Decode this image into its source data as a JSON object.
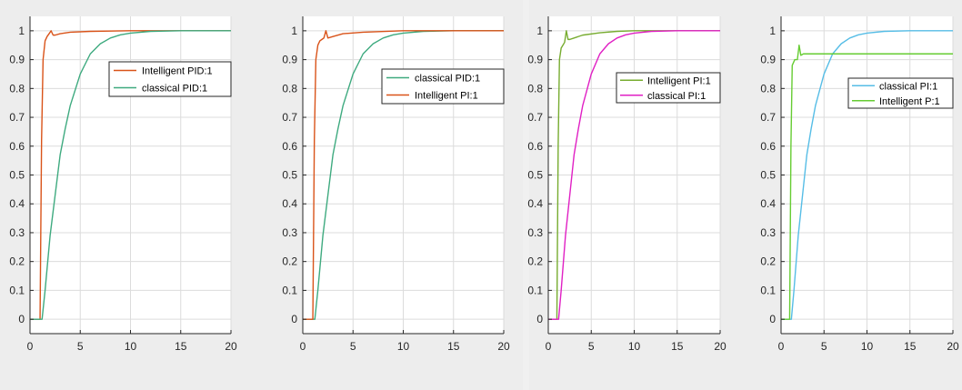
{
  "chart_data": [
    {
      "type": "line",
      "xlim": [
        0,
        20
      ],
      "ylim": [
        -0.05,
        1.05
      ],
      "xticks": [
        0,
        5,
        10,
        15,
        20
      ],
      "yticks": [
        0,
        0.1,
        0.2,
        0.3,
        0.4,
        0.5,
        0.6,
        0.7,
        0.8,
        0.9,
        1
      ],
      "grid": true,
      "legend_position": "upper-right",
      "series": [
        {
          "name": "Intelligent PID:1",
          "color": "#d95319",
          "x": [
            0,
            1,
            1.15,
            1.3,
            1.5,
            1.7,
            1.9,
            2.1,
            2.3,
            2.5,
            3,
            4,
            6,
            10,
            20
          ],
          "y": [
            0,
            0,
            0.62,
            0.9,
            0.965,
            0.98,
            0.99,
            1.0,
            0.985,
            0.985,
            0.99,
            0.995,
            0.998,
            1.0,
            1.0
          ]
        },
        {
          "name": "classical  PID:1",
          "color": "#3eaa7f",
          "x": [
            0,
            1.2,
            1.5,
            2,
            2.5,
            3,
            3.5,
            4,
            5,
            6,
            7,
            8,
            9,
            10,
            12,
            15,
            20
          ],
          "y": [
            0,
            0,
            0.1,
            0.29,
            0.43,
            0.57,
            0.66,
            0.74,
            0.85,
            0.92,
            0.955,
            0.975,
            0.986,
            0.992,
            0.998,
            1.0,
            1.0
          ]
        }
      ]
    },
    {
      "type": "line",
      "xlim": [
        0,
        20
      ],
      "ylim": [
        -0.05,
        1.05
      ],
      "xticks": [
        0,
        5,
        10,
        15,
        20
      ],
      "yticks": [
        0,
        0.1,
        0.2,
        0.3,
        0.4,
        0.5,
        0.6,
        0.7,
        0.8,
        0.9,
        1
      ],
      "grid": true,
      "legend_position": "upper-right",
      "series": [
        {
          "name": "classical  PID:1",
          "color": "#3eaa7f",
          "x": [
            0,
            1.2,
            1.5,
            2,
            2.5,
            3,
            3.5,
            4,
            5,
            6,
            7,
            8,
            9,
            10,
            12,
            15,
            20
          ],
          "y": [
            0,
            0,
            0.1,
            0.29,
            0.43,
            0.57,
            0.66,
            0.74,
            0.85,
            0.92,
            0.955,
            0.975,
            0.986,
            0.992,
            0.998,
            1.0,
            1.0
          ]
        },
        {
          "name": "Intelligent PI:1",
          "color": "#d95319",
          "x": [
            0,
            1,
            1.15,
            1.3,
            1.5,
            1.7,
            1.9,
            2.1,
            2.3,
            2.5,
            3,
            4,
            6,
            10,
            20
          ],
          "y": [
            0,
            0,
            0.62,
            0.9,
            0.95,
            0.965,
            0.97,
            0.975,
            1.0,
            0.975,
            0.98,
            0.99,
            0.995,
            1.0,
            1.0
          ]
        }
      ]
    },
    {
      "type": "line",
      "xlim": [
        0,
        20
      ],
      "ylim": [
        -0.05,
        1.05
      ],
      "xticks": [
        0,
        5,
        10,
        15,
        20
      ],
      "yticks": [
        0,
        0.1,
        0.2,
        0.3,
        0.4,
        0.5,
        0.6,
        0.7,
        0.8,
        0.9,
        1
      ],
      "grid": true,
      "legend_position": "upper-right",
      "series": [
        {
          "name": "Intelligent PI:1",
          "color": "#77ac30",
          "x": [
            0,
            1,
            1.15,
            1.3,
            1.5,
            1.7,
            1.9,
            2.1,
            2.3,
            2.5,
            3,
            4,
            6,
            8,
            10,
            20
          ],
          "y": [
            0,
            0,
            0.6,
            0.9,
            0.94,
            0.95,
            0.96,
            1.0,
            0.97,
            0.97,
            0.975,
            0.985,
            0.993,
            0.998,
            1.0,
            1.0
          ]
        },
        {
          "name": "classical  PI:1",
          "color": "#e020c4",
          "x": [
            0,
            1.2,
            1.5,
            2,
            2.5,
            3,
            3.5,
            4,
            5,
            6,
            7,
            8,
            9,
            10,
            12,
            15,
            20
          ],
          "y": [
            0,
            0,
            0.1,
            0.29,
            0.43,
            0.57,
            0.66,
            0.74,
            0.85,
            0.92,
            0.955,
            0.975,
            0.986,
            0.992,
            0.998,
            1.0,
            1.0
          ]
        }
      ]
    },
    {
      "type": "line",
      "xlim": [
        0,
        20
      ],
      "ylim": [
        -0.05,
        1.05
      ],
      "xticks": [
        0,
        5,
        10,
        15,
        20
      ],
      "yticks": [
        0,
        0.1,
        0.2,
        0.3,
        0.4,
        0.5,
        0.6,
        0.7,
        0.8,
        0.9,
        1
      ],
      "grid": true,
      "legend_position": "upper-right",
      "series": [
        {
          "name": "classical  PI:1",
          "color": "#56bde6",
          "x": [
            0,
            1.2,
            1.5,
            2,
            2.5,
            3,
            3.5,
            4,
            5,
            6,
            7,
            8,
            9,
            10,
            12,
            15,
            20
          ],
          "y": [
            0,
            0,
            0.1,
            0.29,
            0.43,
            0.57,
            0.66,
            0.74,
            0.85,
            0.92,
            0.955,
            0.975,
            0.986,
            0.992,
            0.998,
            1.0,
            1.0
          ]
        },
        {
          "name": "Intelligent P:1",
          "color": "#66cc33",
          "x": [
            0,
            1,
            1.15,
            1.3,
            1.6,
            1.9,
            2.1,
            2.3,
            2.6,
            3,
            4,
            6,
            10,
            20
          ],
          "y": [
            0,
            0,
            0.6,
            0.88,
            0.9,
            0.9,
            0.95,
            0.915,
            0.92,
            0.92,
            0.92,
            0.92,
            0.92,
            0.92
          ]
        }
      ]
    }
  ]
}
